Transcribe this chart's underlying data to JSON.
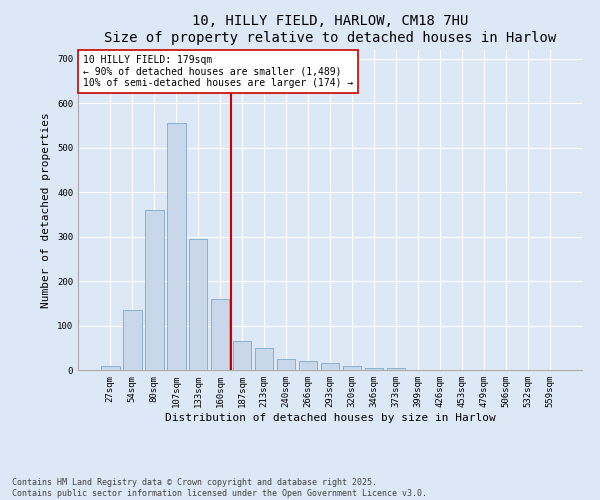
{
  "title_line1": "10, HILLY FIELD, HARLOW, CM18 7HU",
  "title_line2": "Size of property relative to detached houses in Harlow",
  "xlabel": "Distribution of detached houses by size in Harlow",
  "ylabel": "Number of detached properties",
  "categories": [
    "27sqm",
    "54sqm",
    "80sqm",
    "107sqm",
    "133sqm",
    "160sqm",
    "187sqm",
    "213sqm",
    "240sqm",
    "266sqm",
    "293sqm",
    "320sqm",
    "346sqm",
    "373sqm",
    "399sqm",
    "426sqm",
    "453sqm",
    "479sqm",
    "506sqm",
    "532sqm",
    "559sqm"
  ],
  "bar_heights": [
    10,
    135,
    360,
    555,
    295,
    160,
    65,
    50,
    25,
    20,
    15,
    10,
    5,
    5,
    0,
    0,
    0,
    0,
    0,
    0,
    0
  ],
  "bar_color": "#c8d8ea",
  "bar_edge_color": "#7aaac8",
  "vline_x": 5.5,
  "vline_color": "#cc0000",
  "annotation_text": "10 HILLY FIELD: 179sqm\n← 90% of detached houses are smaller (1,489)\n10% of semi-detached houses are larger (174) →",
  "annotation_box_color": "#ffffff",
  "annotation_box_edge": "#cc0000",
  "ylim": [
    0,
    720
  ],
  "yticks": [
    0,
    100,
    200,
    300,
    400,
    500,
    600,
    700
  ],
  "bg_color": "#dce8f5",
  "plot_bg_color": "#dce8f5",
  "footer_line1": "Contains HM Land Registry data © Crown copyright and database right 2025.",
  "footer_line2": "Contains public sector information licensed under the Open Government Licence v3.0.",
  "title_fontsize": 10,
  "tick_fontsize": 6.5,
  "label_fontsize": 8,
  "annotation_fontsize": 7,
  "footer_fontsize": 6
}
